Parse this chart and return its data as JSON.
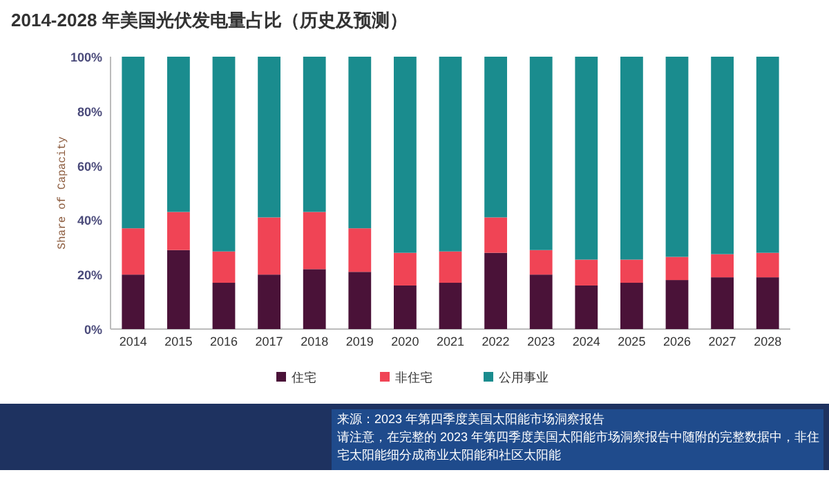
{
  "chart_data": {
    "type": "bar",
    "title": "2014-2028 年美国光伏发电量占比（历史及预测）",
    "ylabel": "Share of Capacity",
    "categories": [
      "2014",
      "2015",
      "2016",
      "2017",
      "2018",
      "2019",
      "2020",
      "2021",
      "2022",
      "2023",
      "2024",
      "2025",
      "2026",
      "2027",
      "2028"
    ],
    "stacked": true,
    "series": [
      {
        "name": "住宅",
        "color": "#4a1238",
        "values": [
          20,
          29,
          17,
          20,
          22,
          21,
          16,
          17,
          28,
          20,
          16,
          17,
          18,
          19,
          19
        ]
      },
      {
        "name": "非住宅",
        "color": "#f04455",
        "values": [
          17,
          14,
          11.5,
          21,
          21,
          16,
          12,
          11.5,
          13,
          9,
          9.5,
          8.5,
          8.5,
          8.5,
          9
        ]
      },
      {
        "name": "公用事业",
        "color": "#1a8c8e",
        "values": [
          63,
          57,
          71.5,
          59,
          57,
          63,
          72,
          71.5,
          59,
          71,
          74.5,
          74.5,
          73.5,
          72.5,
          72
        ]
      }
    ],
    "ylim": [
      0,
      100
    ],
    "yticks": [
      {
        "value": 0,
        "label": "0%"
      },
      {
        "value": 20,
        "label": "20%"
      },
      {
        "value": 40,
        "label": "40%"
      },
      {
        "value": 60,
        "label": "60%"
      },
      {
        "value": 80,
        "label": "80%"
      },
      {
        "value": 100,
        "label": "100%"
      }
    ],
    "grid": false,
    "legend": "bottom",
    "annotations": [
      "来源：2023 年第四季度美国太阳能市场洞察报告",
      "请注意，在完整的 2023 年第四季度美国太阳能市场洞察报告中随附的完整数据中，非住宅太阳能细分成商业太阳能和社区太阳能"
    ]
  }
}
